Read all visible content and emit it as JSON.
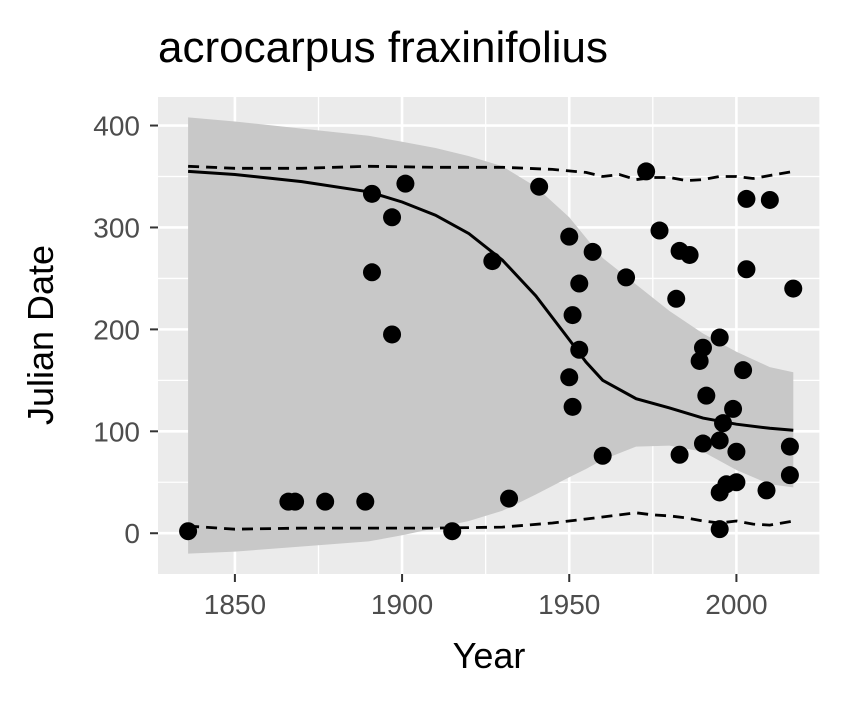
{
  "chart_data": {
    "type": "scatter",
    "title": "acrocarpus fraxinifolius",
    "xlabel": "Year",
    "ylabel": "Julian Date",
    "xlim": [
      1827,
      2025
    ],
    "ylim": [
      -40,
      428
    ],
    "x_ticks": [
      1850,
      1900,
      1950,
      2000
    ],
    "y_ticks": [
      0,
      100,
      200,
      300,
      400
    ],
    "x_tick_labels": [
      "1850",
      "1900",
      "1950",
      "2000"
    ],
    "y_tick_labels": [
      "0",
      "100",
      "200",
      "300",
      "400"
    ],
    "grid": true,
    "legend": "none",
    "colors": {
      "panel": "#ebebeb",
      "grid": "#ffffff",
      "ribbon": "#c8c8c8",
      "points": "#000000",
      "lines": "#000000"
    },
    "points": [
      {
        "x": 1836,
        "y": 2
      },
      {
        "x": 1866,
        "y": 31
      },
      {
        "x": 1868,
        "y": 31
      },
      {
        "x": 1877,
        "y": 31
      },
      {
        "x": 1889,
        "y": 31
      },
      {
        "x": 1891,
        "y": 333
      },
      {
        "x": 1891,
        "y": 256
      },
      {
        "x": 1897,
        "y": 310
      },
      {
        "x": 1897,
        "y": 195
      },
      {
        "x": 1901,
        "y": 343
      },
      {
        "x": 1915,
        "y": 2
      },
      {
        "x": 1927,
        "y": 267
      },
      {
        "x": 1932,
        "y": 34
      },
      {
        "x": 1941,
        "y": 340
      },
      {
        "x": 1950,
        "y": 291
      },
      {
        "x": 1950,
        "y": 153
      },
      {
        "x": 1951,
        "y": 214
      },
      {
        "x": 1951,
        "y": 124
      },
      {
        "x": 1953,
        "y": 245
      },
      {
        "x": 1953,
        "y": 180
      },
      {
        "x": 1957,
        "y": 276
      },
      {
        "x": 1960,
        "y": 76
      },
      {
        "x": 1967,
        "y": 251
      },
      {
        "x": 1973,
        "y": 355
      },
      {
        "x": 1977,
        "y": 297
      },
      {
        "x": 1982,
        "y": 230
      },
      {
        "x": 1983,
        "y": 277
      },
      {
        "x": 1983,
        "y": 77
      },
      {
        "x": 1986,
        "y": 273
      },
      {
        "x": 1989,
        "y": 169
      },
      {
        "x": 1990,
        "y": 182
      },
      {
        "x": 1990,
        "y": 88
      },
      {
        "x": 1991,
        "y": 135
      },
      {
        "x": 1995,
        "y": 192
      },
      {
        "x": 1995,
        "y": 91
      },
      {
        "x": 1995,
        "y": 40
      },
      {
        "x": 1995,
        "y": 4
      },
      {
        "x": 1996,
        "y": 108
      },
      {
        "x": 1997,
        "y": 48
      },
      {
        "x": 1999,
        "y": 122
      },
      {
        "x": 2000,
        "y": 80
      },
      {
        "x": 2000,
        "y": 50
      },
      {
        "x": 2002,
        "y": 160
      },
      {
        "x": 2003,
        "y": 328
      },
      {
        "x": 2003,
        "y": 259
      },
      {
        "x": 2009,
        "y": 42
      },
      {
        "x": 2010,
        "y": 327
      },
      {
        "x": 2016,
        "y": 85
      },
      {
        "x": 2016,
        "y": 57
      },
      {
        "x": 2017,
        "y": 240
      }
    ],
    "fit_line": {
      "x": [
        1836,
        1850,
        1870,
        1890,
        1900,
        1910,
        1920,
        1930,
        1940,
        1950,
        1955,
        1960,
        1970,
        1980,
        1990,
        2000,
        2010,
        2017
      ],
      "y": [
        355,
        352,
        345,
        335,
        325,
        312,
        294,
        268,
        233,
        190,
        168,
        150,
        132,
        123,
        113,
        107,
        103,
        101
      ]
    },
    "ribbon": {
      "x": [
        1836,
        1850,
        1870,
        1890,
        1900,
        1910,
        1920,
        1930,
        1940,
        1950,
        1955,
        1960,
        1970,
        1980,
        1990,
        2000,
        2010,
        2017
      ],
      "lower": [
        -20,
        -18,
        -13,
        -8,
        -2,
        5,
        12,
        22,
        38,
        55,
        63,
        72,
        85,
        86,
        80,
        62,
        48,
        45
      ],
      "upper": [
        408,
        404,
        397,
        390,
        384,
        378,
        370,
        360,
        340,
        310,
        290,
        270,
        244,
        218,
        196,
        178,
        163,
        158
      ]
    },
    "upper_dashed": {
      "x": [
        1836,
        1850,
        1870,
        1890,
        1910,
        1930,
        1945,
        1955,
        1960,
        1965,
        1970,
        1975,
        1980,
        1985,
        1990,
        1995,
        2000,
        2005,
        2010,
        2017
      ],
      "y": [
        360,
        358,
        358,
        360,
        359,
        359,
        357,
        354,
        350,
        352,
        347,
        349,
        349,
        346,
        347,
        350,
        350,
        348,
        351,
        355
      ]
    },
    "lower_dashed": {
      "x": [
        1836,
        1850,
        1870,
        1890,
        1910,
        1930,
        1945,
        1955,
        1965,
        1970,
        1975,
        1980,
        1985,
        1990,
        1995,
        2000,
        2005,
        2010,
        2017
      ],
      "y": [
        7,
        4,
        5,
        5,
        5,
        6,
        10,
        14,
        18,
        20,
        18,
        17,
        15,
        12,
        10,
        12,
        9,
        8,
        12
      ]
    }
  }
}
